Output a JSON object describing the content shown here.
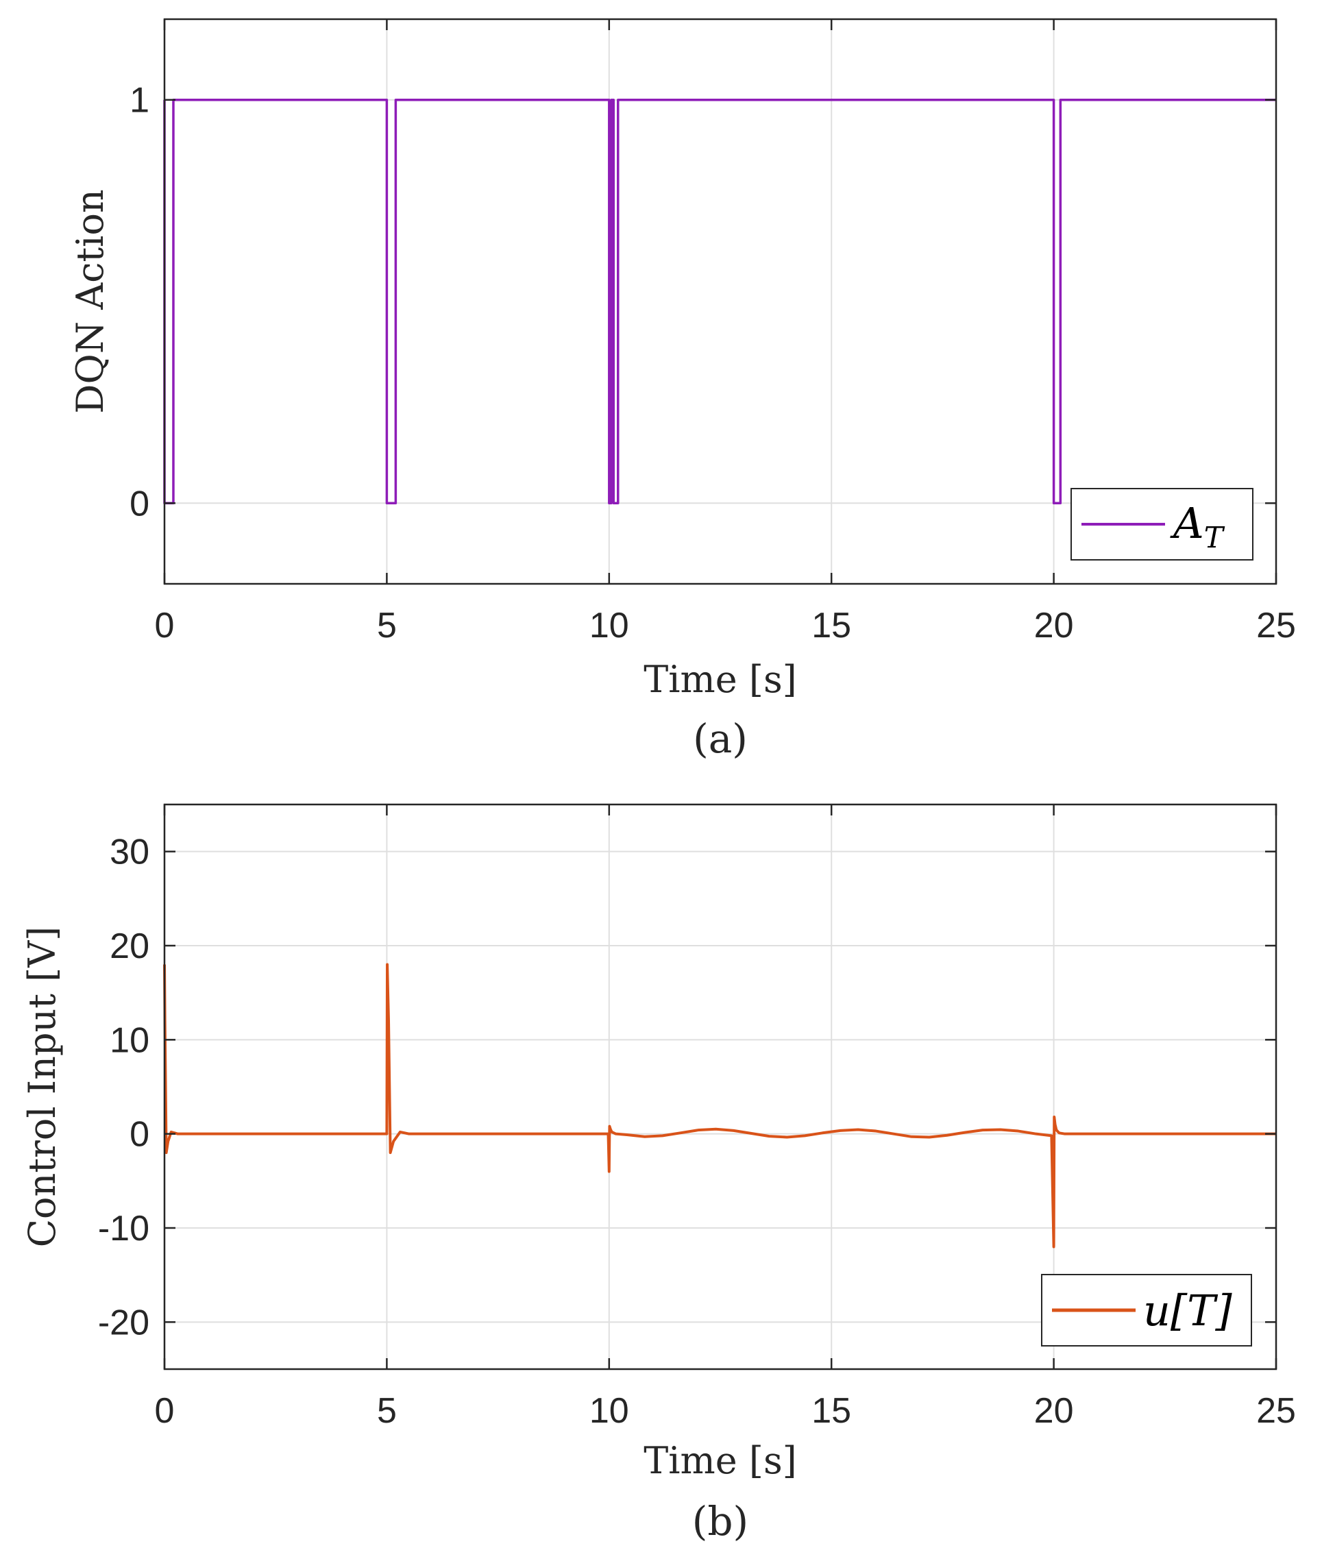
{
  "chart_data": [
    {
      "type": "line",
      "id": "a",
      "caption": "(a)",
      "xlabel": "Time [s]",
      "ylabel": "DQN Action",
      "xlim": [
        0,
        25
      ],
      "ylim": [
        -0.2,
        1.2
      ],
      "xticks": [
        "0",
        "5",
        "10",
        "15",
        "20",
        "25"
      ],
      "yticks": [
        "0",
        "1"
      ],
      "grid": true,
      "legend_position": "bottom-right",
      "series": [
        {
          "name": "A_T",
          "legend_main": "A",
          "legend_sub": "T",
          "color": "#8E1DB8",
          "x": [
            0,
            0,
            0.2,
            0.2,
            5.0,
            5.0,
            5.2,
            5.2,
            10.0,
            10.0,
            10.05,
            10.05,
            10.1,
            10.1,
            10.2,
            10.2,
            20.0,
            20.0,
            20.15,
            20.15,
            25
          ],
          "y": [
            1,
            0,
            0,
            1,
            1,
            0,
            0,
            1,
            1,
            0,
            0,
            1,
            1,
            0,
            0,
            1,
            1,
            0,
            0,
            1,
            1
          ]
        }
      ]
    },
    {
      "type": "line",
      "id": "b",
      "caption": "(b)",
      "xlabel": "Time [s]",
      "ylabel": "Control Input [V]",
      "xlim": [
        0,
        25
      ],
      "ylim": [
        -25,
        35
      ],
      "xticks": [
        "0",
        "5",
        "10",
        "15",
        "20",
        "25"
      ],
      "yticks": [
        "-20",
        "-10",
        "0",
        "10",
        "20",
        "30"
      ],
      "grid": true,
      "legend_position": "bottom-right",
      "series": [
        {
          "name": "u[T]",
          "legend_main": "u[T]",
          "color": "#D95319",
          "x": [
            0,
            0.01,
            0.04,
            0.08,
            0.15,
            0.3,
            0.5,
            5.0,
            5.01,
            5.04,
            5.08,
            5.15,
            5.3,
            5.5,
            9.98,
            10.0,
            10.01,
            10.03,
            10.06,
            10.15,
            10.4,
            10.8,
            11.2,
            11.6,
            12.0,
            12.4,
            12.8,
            13.2,
            13.6,
            14.0,
            14.4,
            14.8,
            15.2,
            15.6,
            16.0,
            16.4,
            16.8,
            17.2,
            17.6,
            18.0,
            18.4,
            18.8,
            19.2,
            19.6,
            19.95,
            20.0,
            20.01,
            20.03,
            20.06,
            20.12,
            20.25,
            20.5,
            25
          ],
          "y": [
            18,
            12,
            -2,
            -0.8,
            0.2,
            0,
            0,
            0,
            18,
            12,
            -2,
            -0.8,
            0.2,
            0,
            0,
            -4,
            0.8,
            0.5,
            0.2,
            0,
            -0.1,
            -0.3,
            -0.2,
            0.1,
            0.4,
            0.5,
            0.35,
            0.05,
            -0.25,
            -0.35,
            -0.2,
            0.1,
            0.35,
            0.45,
            0.3,
            0,
            -0.3,
            -0.35,
            -0.15,
            0.15,
            0.4,
            0.45,
            0.3,
            0,
            -0.2,
            -12,
            1.8,
            1,
            0.4,
            0.1,
            0,
            0,
            0
          ]
        }
      ]
    }
  ]
}
